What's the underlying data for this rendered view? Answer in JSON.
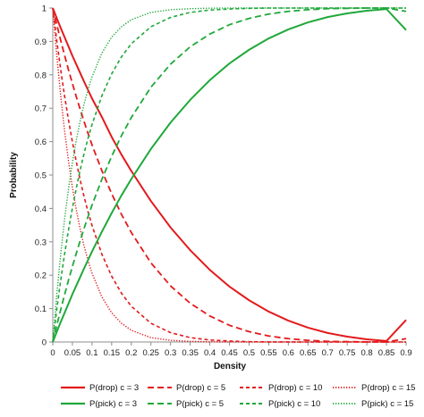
{
  "chart_data": {
    "type": "line",
    "title": "",
    "xlabel": "Density",
    "ylabel": "Probability",
    "xlim": [
      0,
      0.9
    ],
    "ylim": [
      0,
      1
    ],
    "x_ticks": [
      "0",
      "0.05",
      "0.1",
      "0.15",
      "0.2",
      "0.25",
      "0.3",
      "0.35",
      "0.4",
      "0.45",
      "0.5",
      "0.55",
      "0.6",
      "0.65",
      "0.7",
      "0.75",
      "0.8",
      "0.85",
      "0.9"
    ],
    "y_ticks": [
      "0",
      "0.1",
      "0.2",
      "0.3",
      "0.4",
      "0.5",
      "0.6",
      "0.7",
      "0.8",
      "0.9",
      "1"
    ],
    "grid": false,
    "legend_position": "bottom",
    "x": [
      0,
      0.01,
      0.02,
      0.03,
      0.04,
      0.05,
      0.06,
      0.07,
      0.08,
      0.09,
      0.1,
      0.125,
      0.15,
      0.175,
      0.2,
      0.25,
      0.3,
      0.35,
      0.4,
      0.45,
      0.5,
      0.55,
      0.6,
      0.65,
      0.7,
      0.75,
      0.8,
      0.85,
      0.9
    ],
    "series": [
      {
        "name": "P(drop) c = 3",
        "color": "#e31a1c",
        "dash": "solid",
        "values": [
          1,
          0.97,
          0.941,
          0.913,
          0.885,
          0.857,
          0.831,
          0.805,
          0.779,
          0.754,
          0.729,
          0.674,
          0.614,
          0.561,
          0.512,
          0.422,
          0.343,
          0.275,
          0.216,
          0.166,
          0.125,
          0.091,
          0.064,
          0.043,
          0.027,
          0.016,
          0.008,
          0.003,
          0.066
        ]
      },
      {
        "name": "P(drop) c = 5",
        "color": "#e31a1c",
        "dash": "dash",
        "values": [
          1,
          0.951,
          0.904,
          0.859,
          0.815,
          0.774,
          0.734,
          0.696,
          0.659,
          0.624,
          0.59,
          0.513,
          0.444,
          0.382,
          0.328,
          0.237,
          0.168,
          0.116,
          0.078,
          0.05,
          0.031,
          0.018,
          0.01,
          0.005,
          0.002,
          0.001,
          0.0003,
          0.0001,
          0.01
        ]
      },
      {
        "name": "P(drop) c = 10",
        "color": "#e31a1c",
        "dash": "shortdash",
        "values": [
          1,
          0.904,
          0.817,
          0.737,
          0.665,
          0.599,
          0.539,
          0.484,
          0.434,
          0.389,
          0.349,
          0.263,
          0.197,
          0.146,
          0.107,
          0.056,
          0.028,
          0.013,
          0.006,
          0.003,
          0.001,
          0.0003,
          0.0001,
          0,
          0,
          0,
          0,
          0,
          0
        ]
      },
      {
        "name": "P(drop) c = 15",
        "color": "#e31a1c",
        "dash": "dot",
        "values": [
          1,
          0.86,
          0.739,
          0.633,
          0.542,
          0.463,
          0.395,
          0.337,
          0.286,
          0.243,
          0.206,
          0.135,
          0.087,
          0.056,
          0.035,
          0.013,
          0.005,
          0.002,
          0.0005,
          0.0001,
          0,
          0,
          0,
          0,
          0,
          0,
          0,
          0,
          0
        ]
      },
      {
        "name": "P(pick) c = 3",
        "color": "#1fa83a",
        "dash": "solid",
        "values": [
          0,
          0.03,
          0.059,
          0.087,
          0.115,
          0.143,
          0.169,
          0.195,
          0.221,
          0.246,
          0.271,
          0.33,
          0.386,
          0.439,
          0.488,
          0.578,
          0.657,
          0.725,
          0.784,
          0.834,
          0.875,
          0.909,
          0.936,
          0.957,
          0.973,
          0.984,
          0.992,
          0.997,
          0.934
        ]
      },
      {
        "name": "P(pick) c = 5",
        "color": "#1fa83a",
        "dash": "dash",
        "values": [
          0,
          0.049,
          0.096,
          0.141,
          0.185,
          0.226,
          0.266,
          0.304,
          0.341,
          0.376,
          0.41,
          0.487,
          0.556,
          0.618,
          0.672,
          0.763,
          0.832,
          0.884,
          0.922,
          0.95,
          0.969,
          0.982,
          0.99,
          0.995,
          0.998,
          0.999,
          1,
          1,
          0.99
        ]
      },
      {
        "name": "P(pick) c = 10",
        "color": "#1fa83a",
        "dash": "shortdash",
        "values": [
          0,
          0.096,
          0.183,
          0.263,
          0.335,
          0.401,
          0.461,
          0.516,
          0.566,
          0.611,
          0.651,
          0.737,
          0.803,
          0.854,
          0.893,
          0.944,
          0.972,
          0.987,
          0.994,
          0.997,
          0.999,
          1,
          1,
          1,
          1,
          1,
          1,
          1,
          1
        ]
      },
      {
        "name": "P(pick) c = 15",
        "color": "#1fa83a",
        "dash": "dot",
        "values": [
          0,
          0.14,
          0.261,
          0.367,
          0.458,
          0.537,
          0.605,
          0.663,
          0.714,
          0.757,
          0.794,
          0.865,
          0.913,
          0.944,
          0.965,
          0.987,
          0.995,
          0.998,
          0.9995,
          1,
          1,
          1,
          1,
          1,
          1,
          1,
          1,
          1,
          1
        ]
      }
    ]
  }
}
